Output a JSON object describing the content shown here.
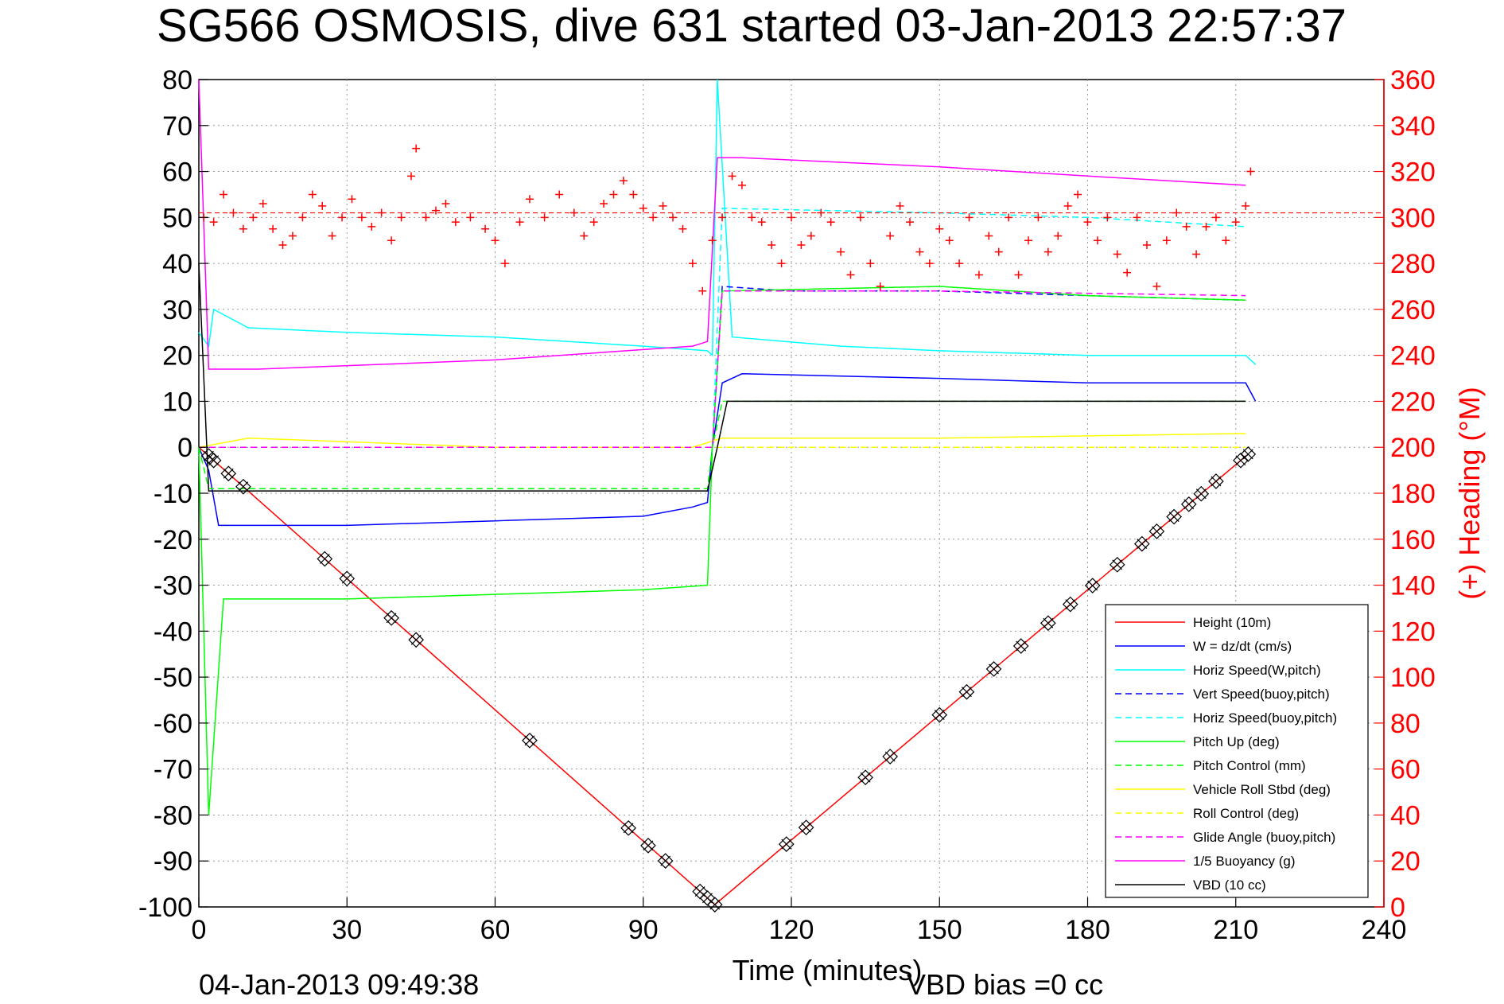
{
  "chart_data": {
    "type": "line",
    "title": "SG566 OSMOSIS, dive 631 started 03-Jan-2013 22:57:37",
    "xlabel": "Time (minutes)",
    "ylabel_right": "(+) Heading (°M)",
    "footer_left": "04-Jan-2013 09:49:38",
    "footer_right": "VBD bias =0 cc",
    "xlim": [
      0,
      240
    ],
    "ylim_left": [
      -100,
      80
    ],
    "ylim_right": [
      0,
      360
    ],
    "x_ticks": [
      "0",
      "30",
      "60",
      "90",
      "120",
      "150",
      "180",
      "210",
      "240"
    ],
    "y_left_ticks": [
      "80",
      "70",
      "60",
      "50",
      "40",
      "30",
      "20",
      "10",
      "0",
      "-10",
      "-20",
      "-30",
      "-40",
      "-50",
      "-60",
      "-70",
      "-80",
      "-90",
      "-100"
    ],
    "y_right_ticks": [
      "360",
      "340",
      "320",
      "300",
      "280",
      "260",
      "240",
      "220",
      "200",
      "180",
      "160",
      "140",
      "120",
      "100",
      "80",
      "60",
      "40",
      "20",
      "0"
    ],
    "grid": true,
    "legend_position": "bottom-right",
    "series": [
      {
        "name": "Height (10m)",
        "color": "#ff0000",
        "style": "solid",
        "x": [
          0,
          104.5,
          212.5
        ],
        "y": [
          0,
          -99.5,
          -1.5
        ]
      },
      {
        "name": "W = dz/dt (cm/s)",
        "color": "#0000ff",
        "style": "solid",
        "x": [
          0,
          2,
          4,
          10,
          30,
          60,
          90,
          100,
          103,
          104,
          106,
          110,
          150,
          180,
          212,
          214
        ],
        "y": [
          0,
          -5,
          -17,
          -17,
          -17,
          -16,
          -15,
          -13,
          -12,
          0,
          14,
          16,
          15,
          14,
          14,
          10
        ]
      },
      {
        "name": "Horiz Speed(W,pitch)",
        "color": "#00ffff",
        "style": "solid",
        "x": [
          0,
          2,
          3,
          10,
          30,
          60,
          90,
          103,
          104,
          105,
          108,
          130,
          150,
          180,
          212,
          214
        ],
        "y": [
          25,
          22,
          30,
          26,
          25,
          24,
          22,
          21,
          20,
          80,
          24,
          22,
          21,
          20,
          20,
          18
        ]
      },
      {
        "name": "Vert Speed(buoy,pitch)",
        "color": "#0000ff",
        "style": "dashed",
        "x": [
          104,
          106,
          120,
          150,
          180,
          212
        ],
        "y": [
          0,
          35,
          34,
          34,
          33,
          32
        ]
      },
      {
        "name": "Horiz Speed(buoy,pitch)",
        "color": "#00ffff",
        "style": "dashed",
        "x": [
          104,
          106,
          150,
          180,
          212
        ],
        "y": [
          0,
          52,
          51,
          50,
          48
        ]
      },
      {
        "name": "Pitch Up (deg)",
        "color": "#00ff00",
        "style": "solid",
        "x": [
          0,
          2,
          5,
          30,
          60,
          90,
          103,
          104,
          106,
          150,
          180,
          212
        ],
        "y": [
          0,
          -80,
          -33,
          -33,
          -32,
          -31,
          -30,
          0,
          34,
          35,
          33,
          32
        ]
      },
      {
        "name": "Pitch Control (mm)",
        "color": "#00ff00",
        "style": "dashed",
        "x": [
          0,
          2,
          103,
          104,
          106,
          212
        ],
        "y": [
          0,
          -9,
          -9,
          0,
          10,
          10
        ]
      },
      {
        "name": "Vehicle Roll Stbd (deg)",
        "color": "#ffff00",
        "style": "solid",
        "x": [
          0,
          10,
          60,
          100,
          106,
          150,
          212
        ],
        "y": [
          0,
          2,
          0,
          0,
          2,
          2,
          3
        ]
      },
      {
        "name": "Roll Control (deg)",
        "color": "#ffff00",
        "style": "dashed",
        "x": [
          0,
          103,
          106,
          212
        ],
        "y": [
          0,
          0,
          0,
          0
        ]
      },
      {
        "name": "Glide Angle (buoy,pitch)",
        "color": "#ff00ff",
        "style": "dashed",
        "x": [
          0,
          103,
          104,
          106,
          150,
          212
        ],
        "y": [
          0,
          0,
          0,
          34,
          34,
          33
        ]
      },
      {
        "name": "1/5 Buoyancy (g)",
        "color": "#ff00ff",
        "style": "solid",
        "x": [
          0,
          2,
          12,
          60,
          100,
          103,
          105,
          110,
          150,
          180,
          212
        ],
        "y": [
          80,
          17,
          17,
          19,
          22,
          23,
          63,
          63,
          61,
          59,
          57
        ]
      },
      {
        "name": "VBD (10 cc)",
        "color": "#000000",
        "style": "solid",
        "x": [
          0,
          2,
          103,
          105,
          107,
          212
        ],
        "y": [
          40,
          -9.5,
          -9.5,
          0,
          10,
          10
        ]
      }
    ],
    "heading_series": {
      "color": "#ff0000",
      "marker": "+",
      "mean_heading": 302,
      "points": [
        [
          1,
          300
        ],
        [
          3,
          298
        ],
        [
          5,
          310
        ],
        [
          7,
          302
        ],
        [
          9,
          295
        ],
        [
          11,
          300
        ],
        [
          13,
          306
        ],
        [
          15,
          295
        ],
        [
          17,
          288
        ],
        [
          19,
          292
        ],
        [
          21,
          300
        ],
        [
          23,
          310
        ],
        [
          25,
          305
        ],
        [
          27,
          292
        ],
        [
          29,
          300
        ],
        [
          31,
          308
        ],
        [
          33,
          300
        ],
        [
          35,
          296
        ],
        [
          37,
          302
        ],
        [
          39,
          290
        ],
        [
          41,
          300
        ],
        [
          43,
          318
        ],
        [
          44,
          330
        ],
        [
          46,
          300
        ],
        [
          48,
          303
        ],
        [
          50,
          306
        ],
        [
          52,
          298
        ],
        [
          55,
          300
        ],
        [
          58,
          295
        ],
        [
          60,
          290
        ],
        [
          62,
          280
        ],
        [
          65,
          298
        ],
        [
          67,
          308
        ],
        [
          70,
          300
        ],
        [
          73,
          310
        ],
        [
          76,
          302
        ],
        [
          78,
          292
        ],
        [
          80,
          298
        ],
        [
          82,
          306
        ],
        [
          84,
          310
        ],
        [
          86,
          316
        ],
        [
          88,
          310
        ],
        [
          90,
          304
        ],
        [
          92,
          300
        ],
        [
          94,
          305
        ],
        [
          96,
          300
        ],
        [
          98,
          295
        ],
        [
          100,
          280
        ],
        [
          102,
          268
        ],
        [
          104,
          290
        ],
        [
          106,
          300
        ],
        [
          108,
          318
        ],
        [
          110,
          314
        ],
        [
          112,
          300
        ],
        [
          114,
          298
        ],
        [
          116,
          288
        ],
        [
          118,
          280
        ],
        [
          120,
          300
        ],
        [
          122,
          288
        ],
        [
          124,
          292
        ],
        [
          126,
          302
        ],
        [
          128,
          298
        ],
        [
          130,
          285
        ],
        [
          132,
          275
        ],
        [
          134,
          300
        ],
        [
          136,
          280
        ],
        [
          138,
          270
        ],
        [
          140,
          292
        ],
        [
          142,
          305
        ],
        [
          144,
          298
        ],
        [
          146,
          285
        ],
        [
          148,
          280
        ],
        [
          150,
          295
        ],
        [
          152,
          290
        ],
        [
          154,
          280
        ],
        [
          156,
          300
        ],
        [
          158,
          275
        ],
        [
          160,
          292
        ],
        [
          162,
          285
        ],
        [
          164,
          300
        ],
        [
          166,
          275
        ],
        [
          168,
          290
        ],
        [
          170,
          300
        ],
        [
          172,
          285
        ],
        [
          174,
          292
        ],
        [
          176,
          305
        ],
        [
          178,
          310
        ],
        [
          180,
          298
        ],
        [
          182,
          290
        ],
        [
          184,
          300
        ],
        [
          186,
          284
        ],
        [
          188,
          276
        ],
        [
          190,
          300
        ],
        [
          192,
          288
        ],
        [
          194,
          270
        ],
        [
          196,
          290
        ],
        [
          198,
          302
        ],
        [
          200,
          296
        ],
        [
          202,
          284
        ],
        [
          204,
          296
        ],
        [
          206,
          300
        ],
        [
          208,
          290
        ],
        [
          210,
          298
        ],
        [
          212,
          305
        ],
        [
          213,
          320
        ]
      ]
    },
    "markers": {
      "symbol": "diamond-x",
      "color": "#000000",
      "x": [
        2,
        3,
        6,
        9,
        25.5,
        30,
        39,
        44,
        67,
        87,
        91,
        94.5,
        101.5,
        103,
        104.5,
        119,
        123,
        135,
        140,
        150,
        155.5,
        161,
        166.5,
        172,
        176.5,
        181,
        186,
        191,
        194,
        197.5,
        200.5,
        203,
        206,
        211,
        212.5
      ]
    }
  }
}
